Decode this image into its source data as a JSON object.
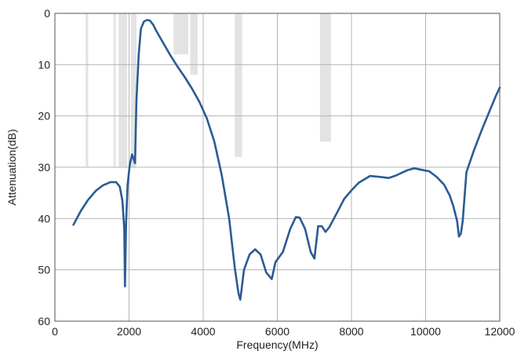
{
  "chart_data": {
    "type": "line",
    "title": "",
    "xlabel": "Frequency(MHz)",
    "ylabel": "Attenuation(dB)",
    "xlim": [
      0,
      12000
    ],
    "ylim": [
      0,
      60
    ],
    "y_inverted": true,
    "xticks": [
      0,
      2000,
      4000,
      6000,
      8000,
      10000,
      12000
    ],
    "yticks": [
      0,
      10,
      20,
      30,
      40,
      50,
      60
    ],
    "xtick_labels": [
      "0",
      "2000",
      "4000",
      "6000",
      "8000",
      "10000",
      "12000"
    ],
    "ytick_labels": [
      "0",
      "10",
      "20",
      "30",
      "40",
      "50",
      "60"
    ],
    "grid": true,
    "line_color": "#2a5b94",
    "band_color": "#e3e3e3",
    "bands": [
      {
        "x0": 830,
        "x1": 900,
        "y0": 0,
        "y1": 30
      },
      {
        "x0": 1580,
        "x1": 1640,
        "y0": 0,
        "y1": 30
      },
      {
        "x0": 1720,
        "x1": 1950,
        "y0": 0,
        "y1": 30
      },
      {
        "x0": 2050,
        "x1": 2200,
        "y0": 0,
        "y1": 30
      },
      {
        "x0": 3200,
        "x1": 3600,
        "y0": 0,
        "y1": 8
      },
      {
        "x0": 3650,
        "x1": 3850,
        "y0": 0,
        "y1": 12
      },
      {
        "x0": 4850,
        "x1": 5050,
        "y0": 0,
        "y1": 28
      },
      {
        "x0": 7150,
        "x1": 7450,
        "y0": 0,
        "y1": 25
      }
    ],
    "series": [
      {
        "x": [
          500,
          700,
          900,
          1100,
          1300,
          1500,
          1650,
          1750,
          1820,
          1870,
          1890,
          1920,
          1960,
          2020,
          2080,
          2130,
          2160,
          2200,
          2260,
          2320,
          2400,
          2480,
          2560,
          2650,
          2750,
          2900,
          3100,
          3300,
          3500,
          3700,
          3900,
          4100,
          4300,
          4500,
          4700,
          4850,
          4950,
          5000,
          5100,
          5250,
          5400,
          5550,
          5700,
          5850,
          5950,
          6150,
          6350,
          6500,
          6600,
          6750,
          6900,
          7000,
          7100,
          7200,
          7300,
          7400,
          7600,
          7800,
          8000,
          8200,
          8500,
          8800,
          9000,
          9200,
          9500,
          9700,
          9900,
          10100,
          10300,
          10500,
          10650,
          10750,
          10850,
          10900,
          10950,
          11000,
          11100,
          11300,
          11500,
          11700,
          11900,
          12000
        ],
        "y": [
          41.2,
          38.5,
          36.3,
          34.6,
          33.5,
          32.9,
          32.9,
          33.8,
          36.5,
          42.0,
          53.2,
          41.0,
          33.5,
          29.5,
          27.5,
          28.5,
          29.2,
          17.0,
          8.0,
          3.0,
          1.6,
          1.3,
          1.4,
          2.2,
          3.6,
          5.5,
          8.0,
          10.3,
          12.4,
          14.7,
          17.3,
          20.5,
          25.0,
          31.5,
          40.0,
          49.5,
          54.5,
          55.8,
          50.0,
          47.0,
          46.0,
          47.0,
          50.5,
          51.8,
          48.5,
          46.5,
          42.0,
          39.7,
          39.8,
          42.0,
          46.5,
          47.8,
          41.5,
          41.5,
          42.6,
          41.7,
          39.0,
          36.2,
          34.5,
          33.0,
          31.7,
          31.9,
          32.1,
          31.6,
          30.6,
          30.2,
          30.5,
          30.8,
          31.9,
          33.4,
          35.5,
          37.6,
          40.5,
          43.5,
          43.0,
          40.5,
          31.0,
          26.8,
          23.0,
          19.5,
          16.0,
          14.5
        ]
      }
    ]
  }
}
